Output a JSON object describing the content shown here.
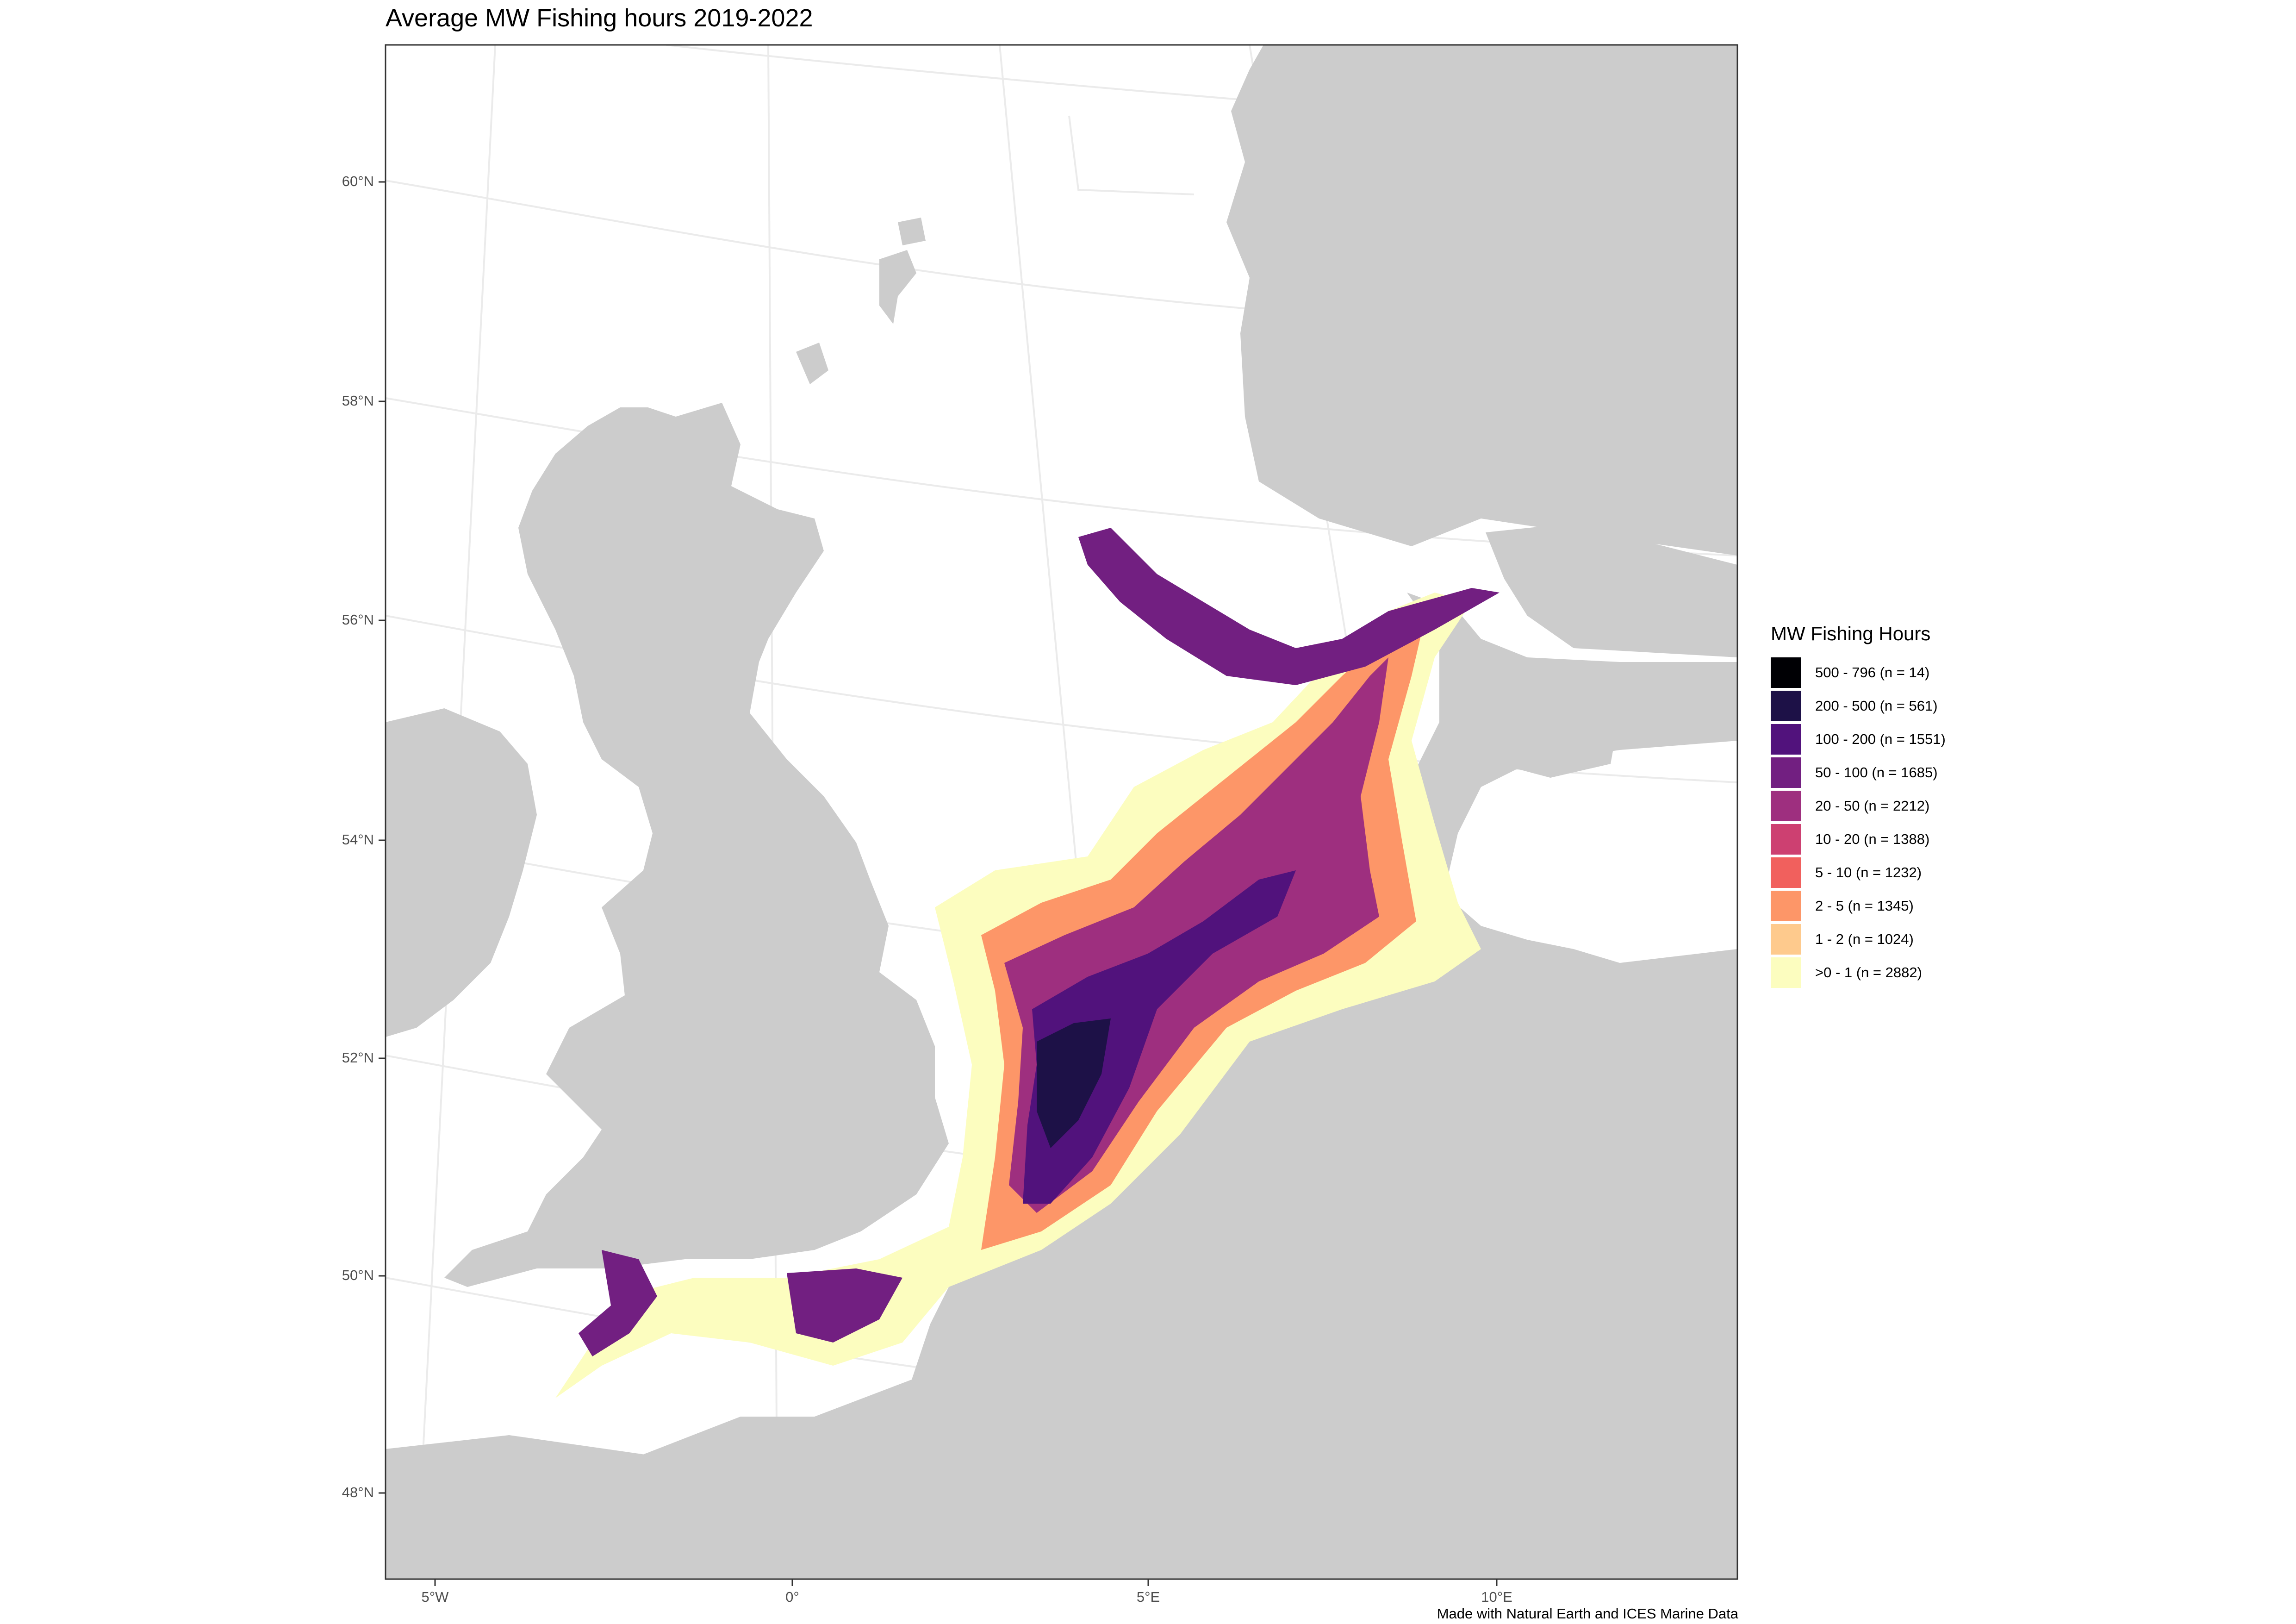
{
  "title": "Average MW Fishing hours 2019-2022",
  "y_axis_labels": [
    "60°N",
    "58°N",
    "56°N",
    "54°N",
    "52°N",
    "50°N",
    "48°N"
  ],
  "x_axis_labels": [
    "5°W",
    "0°",
    "5°E",
    "10°E"
  ],
  "legend": {
    "title": "MW Fishing Hours",
    "items": [
      {
        "label": "500 - 796 (n = 14)",
        "color": "#000004"
      },
      {
        "label": "200 - 500 (n = 561)",
        "color": "#1d1147"
      },
      {
        "label": "100 - 200 (n = 1551)",
        "color": "#51127c"
      },
      {
        "label": "50 - 100 (n = 1685)",
        "color": "#721f81"
      },
      {
        "label": "20 - 50 (n = 2212)",
        "color": "#9e2f7f"
      },
      {
        "label": "10 - 20 (n = 1388)",
        "color": "#cd4071"
      },
      {
        "label": "5 - 10 (n = 1232)",
        "color": "#f1605d"
      },
      {
        "label": "2 - 5 (n = 1345)",
        "color": "#fd9668"
      },
      {
        "label": "1 - 2 (n = 1024)",
        "color": "#feca8d"
      },
      {
        "label": ">0 - 1 (n = 2882)",
        "color": "#fcfdbf"
      }
    ]
  },
  "caption": "Made with Natural Earth and ICES Marine Data",
  "colors": {
    "land": "#cccccc",
    "sea": "#ffffff",
    "graticule": "#ebebeb",
    "border": "#333333"
  }
}
